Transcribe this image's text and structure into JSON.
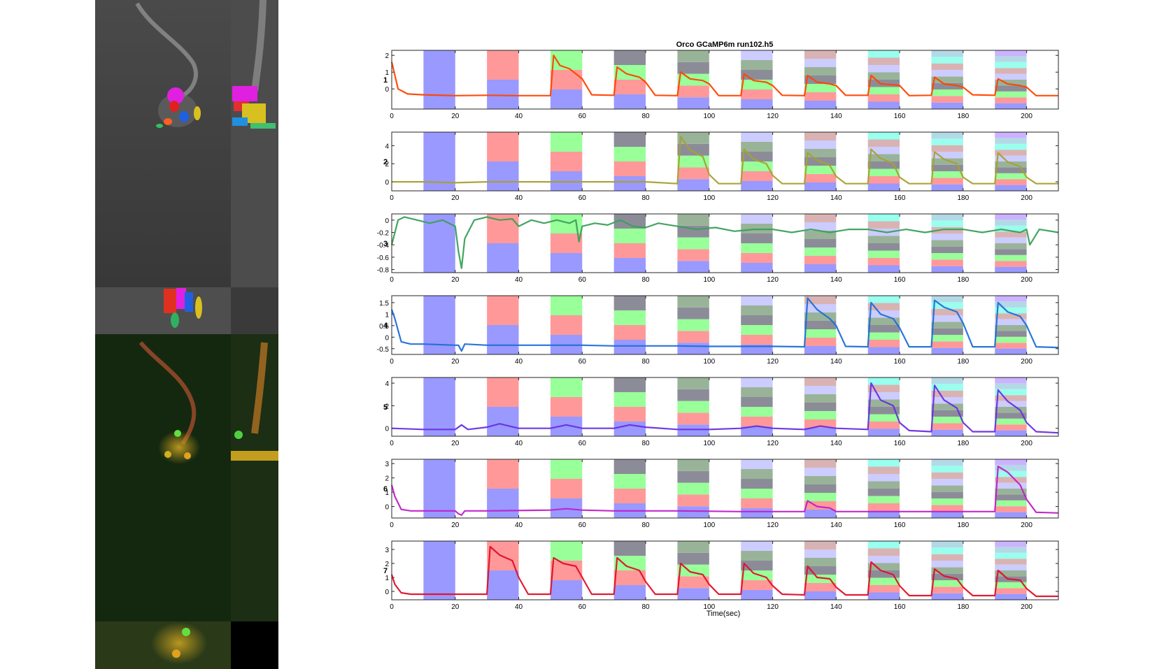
{
  "figure": {
    "title": "Orco GCaMP6m run102.h5",
    "xlabel": "Time(sec)"
  },
  "colors": {
    "stim_palette": [
      "#9999ff",
      "#ff9999",
      "#99ff99",
      "#8c8c99",
      "#99b399",
      "#ccccff",
      "#d9b3b3",
      "#99ffee",
      "#b3d9e6",
      "#ccb3ff"
    ],
    "trace_colors": [
      "#ff4500",
      "#a8a030",
      "#3aa05a",
      "#1f6fd8",
      "#6a2fe0",
      "#c020c8",
      "#e0102a"
    ]
  },
  "chart_data": [
    {
      "type": "line",
      "roi": "1",
      "xlim": [
        0,
        210
      ],
      "ylim": [
        -1.2,
        2.3
      ],
      "yticks": [
        "2",
        "1",
        "0"
      ],
      "xticks": [
        "0",
        "20",
        "40",
        "60",
        "80",
        "100",
        "120",
        "140",
        "160",
        "180",
        "200"
      ],
      "stim_onsets": [
        10,
        30,
        50,
        70,
        90,
        110,
        130,
        150,
        170,
        190
      ],
      "stim_duration": 10,
      "series": [
        {
          "x": [
            0,
            2,
            5,
            10,
            20,
            30,
            40,
            50,
            51,
            53,
            56,
            60,
            63,
            70,
            71,
            74,
            78,
            80,
            83,
            90,
            91,
            94,
            98,
            100,
            103,
            110,
            111,
            114,
            118,
            120,
            123,
            130,
            131,
            134,
            138,
            140,
            143,
            150,
            151,
            154,
            158,
            160,
            163,
            170,
            171,
            174,
            178,
            180,
            183,
            190,
            191,
            194,
            198,
            200,
            203,
            210
          ],
          "y": [
            1.6,
            0.0,
            -0.3,
            -0.35,
            -0.4,
            -0.38,
            -0.4,
            -0.4,
            2.0,
            1.4,
            1.2,
            0.6,
            -0.35,
            -0.38,
            1.3,
            0.9,
            0.7,
            0.4,
            -0.38,
            -0.4,
            1.0,
            0.6,
            0.5,
            0.3,
            -0.4,
            -0.4,
            0.9,
            0.5,
            0.4,
            0.2,
            -0.38,
            -0.4,
            0.8,
            0.4,
            0.3,
            0.2,
            -0.38,
            -0.38,
            0.8,
            0.3,
            0.25,
            0.2,
            -0.4,
            -0.38,
            0.7,
            0.3,
            0.2,
            0.1,
            -0.35,
            -0.38,
            0.6,
            0.3,
            0.2,
            0.1,
            -0.4,
            -0.4
          ]
        }
      ]
    },
    {
      "type": "line",
      "roi": "2",
      "xlim": [
        0,
        210
      ],
      "ylim": [
        -1,
        5.5
      ],
      "yticks": [
        "4",
        "2",
        "0"
      ],
      "xticks": [
        "0",
        "20",
        "40",
        "60",
        "80",
        "100",
        "120",
        "140",
        "160",
        "180",
        "200"
      ],
      "stim_onsets": [
        10,
        30,
        50,
        70,
        90,
        110,
        130,
        150,
        170,
        190
      ],
      "stim_duration": 10,
      "series": [
        {
          "x": [
            0,
            10,
            20,
            30,
            40,
            50,
            60,
            70,
            80,
            90,
            91,
            94,
            98,
            100,
            103,
            110,
            111,
            114,
            118,
            120,
            123,
            130,
            131,
            134,
            138,
            140,
            143,
            150,
            151,
            154,
            158,
            160,
            163,
            170,
            171,
            174,
            178,
            180,
            183,
            190,
            191,
            194,
            198,
            200,
            203,
            210
          ],
          "y": [
            0.0,
            0.0,
            -0.1,
            0.0,
            0.0,
            0.0,
            0.0,
            0.0,
            0.0,
            -0.2,
            5.0,
            3.5,
            2.8,
            0.8,
            -0.2,
            -0.2,
            3.6,
            2.5,
            2.0,
            0.7,
            -0.2,
            -0.2,
            3.2,
            2.4,
            1.8,
            0.6,
            -0.2,
            -0.2,
            3.6,
            2.6,
            2.0,
            0.5,
            -0.2,
            -0.2,
            3.3,
            2.5,
            2.0,
            0.5,
            -0.2,
            -0.2,
            3.2,
            2.2,
            1.7,
            0.5,
            -0.2,
            -0.2
          ]
        }
      ]
    },
    {
      "type": "line",
      "roi": "3",
      "xlim": [
        0,
        210
      ],
      "ylim": [
        -0.85,
        0.1
      ],
      "yticks": [
        "0",
        "-0.2",
        "-0.4",
        "-0.6",
        "-0.8"
      ],
      "xticks": [
        "0",
        "20",
        "40",
        "60",
        "80",
        "100",
        "120",
        "140",
        "160",
        "180",
        "200"
      ],
      "stim_onsets": [
        10,
        30,
        50,
        70,
        90,
        110,
        130,
        150,
        170,
        190
      ],
      "stim_duration": 10,
      "series": [
        {
          "x": [
            0,
            2,
            4,
            8,
            12,
            16,
            20,
            21,
            22,
            23,
            26,
            30,
            34,
            38,
            40,
            44,
            48,
            52,
            56,
            58,
            59,
            60,
            64,
            68,
            72,
            76,
            80,
            84,
            90,
            96,
            102,
            108,
            114,
            120,
            126,
            132,
            138,
            144,
            150,
            156,
            162,
            168,
            174,
            180,
            186,
            192,
            198,
            200,
            201,
            204,
            210
          ],
          "y": [
            -0.4,
            0.0,
            0.05,
            0.0,
            -0.05,
            0.0,
            -0.1,
            -0.5,
            -0.78,
            -0.3,
            0.0,
            0.05,
            0.0,
            0.02,
            -0.1,
            0.0,
            -0.05,
            0.0,
            -0.05,
            0.0,
            -0.35,
            -0.1,
            -0.05,
            -0.08,
            0.0,
            -0.1,
            -0.12,
            -0.05,
            -0.1,
            -0.15,
            -0.12,
            -0.18,
            -0.15,
            -0.15,
            -0.2,
            -0.15,
            -0.2,
            -0.15,
            -0.15,
            -0.2,
            -0.15,
            -0.2,
            -0.15,
            -0.15,
            -0.2,
            -0.15,
            -0.2,
            -0.15,
            -0.4,
            -0.15,
            -0.2
          ]
        }
      ]
    },
    {
      "type": "line",
      "roi": "4",
      "xlim": [
        0,
        210
      ],
      "ylim": [
        -0.75,
        1.8
      ],
      "yticks": [
        "1.5",
        "1",
        "0.5",
        "0",
        "-0.5"
      ],
      "xticks": [
        "0",
        "20",
        "40",
        "60",
        "80",
        "100",
        "120",
        "140",
        "160",
        "180",
        "200"
      ],
      "stim_onsets": [
        10,
        30,
        50,
        70,
        90,
        110,
        130,
        150,
        170,
        190
      ],
      "stim_duration": 10,
      "series": [
        {
          "x": [
            0,
            1,
            3,
            6,
            10,
            20,
            21,
            22,
            23,
            30,
            40,
            50,
            60,
            70,
            80,
            90,
            100,
            110,
            120,
            130,
            131,
            134,
            138,
            140,
            143,
            150,
            151,
            154,
            158,
            160,
            163,
            170,
            171,
            174,
            178,
            180,
            183,
            190,
            191,
            194,
            198,
            200,
            203,
            210
          ],
          "y": [
            1.2,
            0.8,
            -0.2,
            -0.3,
            -0.3,
            -0.35,
            -0.35,
            -0.6,
            -0.3,
            -0.35,
            -0.35,
            -0.35,
            -0.35,
            -0.38,
            -0.38,
            -0.38,
            -0.4,
            -0.4,
            -0.4,
            -0.42,
            1.7,
            1.2,
            0.8,
            0.5,
            -0.4,
            -0.42,
            1.5,
            1.0,
            0.8,
            0.4,
            -0.42,
            -0.42,
            1.6,
            1.3,
            1.1,
            0.6,
            -0.42,
            -0.42,
            1.5,
            1.1,
            0.9,
            0.5,
            -0.42,
            -0.45
          ]
        }
      ]
    },
    {
      "type": "line",
      "roi": "5",
      "xlim": [
        0,
        210
      ],
      "ylim": [
        -0.7,
        4.5
      ],
      "yticks": [
        "4",
        "2",
        "0"
      ],
      "xticks": [
        "0",
        "20",
        "40",
        "60",
        "80",
        "100",
        "120",
        "140",
        "160",
        "180",
        "200"
      ],
      "stim_onsets": [
        10,
        30,
        50,
        70,
        90,
        110,
        130,
        150,
        170,
        190
      ],
      "stim_duration": 10,
      "series": [
        {
          "x": [
            0,
            10,
            20,
            22,
            24,
            30,
            34,
            40,
            50,
            55,
            60,
            70,
            75,
            80,
            90,
            100,
            110,
            115,
            120,
            130,
            135,
            140,
            150,
            151,
            154,
            158,
            160,
            163,
            170,
            171,
            174,
            178,
            180,
            183,
            190,
            191,
            194,
            198,
            200,
            203,
            210
          ],
          "y": [
            0.0,
            -0.1,
            -0.1,
            0.3,
            -0.1,
            0.1,
            0.4,
            0.0,
            0.0,
            0.3,
            0.0,
            0.0,
            0.3,
            0.1,
            -0.1,
            -0.1,
            0.0,
            0.2,
            0.0,
            -0.1,
            0.2,
            0.0,
            -0.1,
            4.0,
            2.5,
            2.0,
            0.5,
            -0.2,
            -0.3,
            3.8,
            2.5,
            1.8,
            0.5,
            -0.3,
            -0.3,
            3.4,
            2.4,
            1.6,
            0.5,
            -0.3,
            -0.4
          ]
        }
      ]
    },
    {
      "type": "line",
      "roi": "6",
      "xlim": [
        0,
        210
      ],
      "ylim": [
        -0.8,
        3.3
      ],
      "yticks": [
        "3",
        "2",
        "1",
        "0"
      ],
      "xticks": [
        "0",
        "20",
        "40",
        "60",
        "80",
        "100",
        "120",
        "140",
        "160",
        "180",
        "200"
      ],
      "stim_onsets": [
        10,
        30,
        50,
        70,
        90,
        110,
        130,
        150,
        170,
        190
      ],
      "stim_duration": 10,
      "series": [
        {
          "x": [
            0,
            1,
            3,
            6,
            10,
            20,
            21,
            22,
            23,
            30,
            50,
            55,
            60,
            70,
            90,
            110,
            130,
            131,
            134,
            138,
            140,
            150,
            170,
            190,
            191,
            194,
            198,
            200,
            203,
            210
          ],
          "y": [
            1.5,
            0.7,
            -0.2,
            -0.3,
            -0.3,
            -0.3,
            -0.5,
            -0.6,
            -0.3,
            -0.3,
            -0.25,
            -0.15,
            -0.25,
            -0.3,
            -0.3,
            -0.35,
            -0.35,
            0.4,
            0.0,
            -0.1,
            -0.35,
            -0.35,
            -0.35,
            -0.35,
            2.8,
            2.4,
            1.5,
            0.5,
            -0.4,
            -0.45
          ]
        }
      ]
    },
    {
      "type": "line",
      "roi": "7",
      "xlim": [
        0,
        210
      ],
      "ylim": [
        -0.6,
        3.6
      ],
      "yticks": [
        "3",
        "2",
        "1",
        "0"
      ],
      "xticks": [
        "0",
        "20",
        "40",
        "60",
        "80",
        "100",
        "120",
        "140",
        "160",
        "180",
        "200"
      ],
      "stim_onsets": [
        10,
        30,
        50,
        70,
        90,
        110,
        130,
        150,
        170,
        190
      ],
      "stim_duration": 10,
      "series": [
        {
          "x": [
            0,
            1,
            3,
            6,
            10,
            20,
            30,
            31,
            34,
            38,
            40,
            43,
            50,
            51,
            54,
            58,
            60,
            63,
            70,
            71,
            74,
            78,
            80,
            83,
            90,
            91,
            94,
            98,
            100,
            103,
            110,
            111,
            114,
            118,
            120,
            123,
            130,
            131,
            134,
            138,
            140,
            143,
            150,
            151,
            154,
            158,
            160,
            163,
            170,
            171,
            174,
            178,
            180,
            183,
            190,
            191,
            194,
            198,
            200,
            203,
            210
          ],
          "y": [
            1.2,
            0.5,
            -0.1,
            -0.2,
            -0.2,
            -0.2,
            -0.2,
            3.2,
            2.6,
            2.2,
            1.0,
            -0.2,
            -0.2,
            2.4,
            2.0,
            1.8,
            1.0,
            -0.2,
            -0.2,
            2.4,
            1.8,
            1.5,
            0.7,
            -0.2,
            -0.2,
            2.0,
            1.4,
            1.2,
            0.5,
            -0.2,
            -0.2,
            2.0,
            1.3,
            1.0,
            0.4,
            -0.2,
            -0.25,
            1.8,
            1.0,
            0.9,
            0.3,
            -0.25,
            -0.25,
            2.1,
            1.5,
            1.2,
            0.4,
            -0.3,
            -0.3,
            1.6,
            1.1,
            0.9,
            0.3,
            -0.3,
            -0.3,
            1.5,
            0.9,
            0.8,
            0.2,
            -0.35,
            -0.35
          ]
        }
      ]
    }
  ]
}
